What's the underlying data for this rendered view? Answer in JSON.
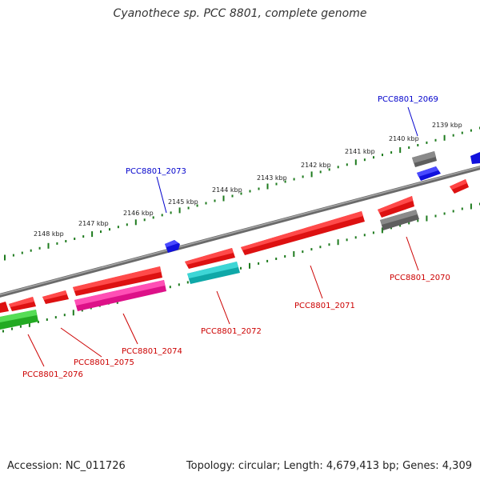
{
  "title": "Cyanothece sp. PCC 8801, complete genome",
  "footer": {
    "accession": "Accession: NC_011726",
    "summary": "Topology: circular; Length: 4,679,413 bp; Genes: 4,309"
  },
  "colors": {
    "backbone": "#808080",
    "ticks": "#1e7b1e",
    "label_blue": "#0000cc",
    "label_red": "#cc0000",
    "gene_red": "#ee1111",
    "gene_blue": "#1111dd",
    "gene_grey": "#6e6e6e",
    "gene_cyan": "#11bbbb",
    "gene_magenta": "#ee1199",
    "gene_green": "#33cc33"
  },
  "kbp_labels": [
    "2139 kbp",
    "2140 kbp",
    "2141 kbp",
    "2142 kbp",
    "2143 kbp",
    "2144 kbp",
    "2145 kbp",
    "2146 kbp",
    "2147 kbp",
    "2148 kbp"
  ],
  "gene_labels": {
    "g2069": "PCC8801_2069",
    "g2070": "PCC8801_2070",
    "g2071": "PCC8801_2071",
    "g2072": "PCC8801_2072",
    "g2073": "PCC8801_2073",
    "g2074": "PCC8801_2074",
    "g2075": "PCC8801_2075",
    "g2076": "PCC8801_2076"
  }
}
